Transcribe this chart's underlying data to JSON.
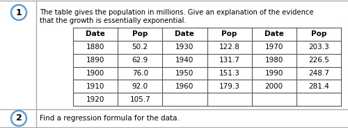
{
  "title_line1": "The table gives the population in millions. Give an explanation of the evidence",
  "title_line2": "that the growth is essentially exponential.",
  "question2_text": "Find a regression formula for the data.",
  "table_headers": [
    "Date",
    "Pop",
    "Date",
    "Pop",
    "Date",
    "Pop"
  ],
  "col1_dates": [
    "1880",
    "1890",
    "1900",
    "1910",
    "1920"
  ],
  "col1_pops": [
    "50.2",
    "62.9",
    "76.0",
    "92.0",
    "105.7"
  ],
  "col2_dates": [
    "1930",
    "1940",
    "1950",
    "1960",
    ""
  ],
  "col2_pops": [
    "122.8",
    "131.7",
    "151.3",
    "179.3",
    ""
  ],
  "col3_dates": [
    "1970",
    "1980",
    "1990",
    "2000",
    ""
  ],
  "col3_pops": [
    "203.3",
    "226.5",
    "248.7",
    "281.4",
    ""
  ],
  "bg_color": "#ffffff",
  "outer_border_color": "#aaaaaa",
  "table_border_color": "#555555",
  "text_color": "#000000",
  "circle_edge_color": "#5b9bd5",
  "left_panel_color": "#f0f0f0"
}
